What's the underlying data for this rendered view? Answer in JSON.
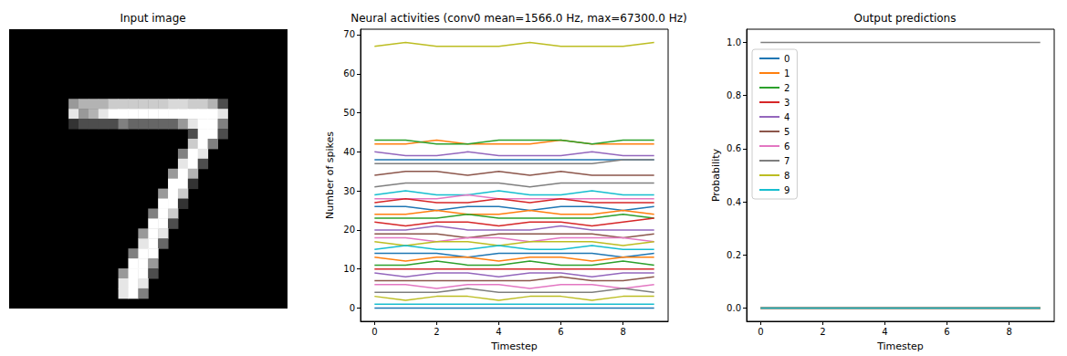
{
  "chart_data": [
    {
      "type": "heatmap",
      "title": "Input image",
      "rows": 28,
      "cols": 28,
      "color_range": [
        0,
        1
      ],
      "tick_labels": false,
      "cells": [
        [
          6,
          7,
          0.6
        ],
        [
          7,
          7,
          0.7
        ],
        [
          8,
          7,
          0.7
        ],
        [
          9,
          7,
          0.7
        ],
        [
          10,
          7,
          0.8
        ],
        [
          11,
          7,
          0.8
        ],
        [
          12,
          7,
          0.8
        ],
        [
          13,
          7,
          0.8
        ],
        [
          14,
          7,
          0.8
        ],
        [
          15,
          7,
          0.8
        ],
        [
          16,
          7,
          0.85
        ],
        [
          17,
          7,
          0.85
        ],
        [
          18,
          7,
          0.8
        ],
        [
          19,
          7,
          0.8
        ],
        [
          20,
          7,
          0.7
        ],
        [
          21,
          7,
          0.3
        ],
        [
          6,
          8,
          0.9
        ],
        [
          7,
          8,
          0.6
        ],
        [
          8,
          8,
          0.7
        ],
        [
          9,
          8,
          0.9
        ],
        [
          10,
          8,
          1
        ],
        [
          11,
          8,
          1
        ],
        [
          12,
          8,
          1
        ],
        [
          13,
          8,
          1
        ],
        [
          14,
          8,
          1
        ],
        [
          15,
          8,
          1
        ],
        [
          16,
          8,
          1
        ],
        [
          17,
          8,
          1
        ],
        [
          18,
          8,
          1
        ],
        [
          19,
          8,
          1
        ],
        [
          20,
          8,
          1
        ],
        [
          21,
          8,
          0.9
        ],
        [
          6,
          9,
          0.2
        ],
        [
          7,
          9,
          0.3
        ],
        [
          8,
          9,
          0.3
        ],
        [
          9,
          9,
          0.3
        ],
        [
          10,
          9,
          0.3
        ],
        [
          11,
          9,
          0.5
        ],
        [
          12,
          9,
          0.4
        ],
        [
          13,
          9,
          0.4
        ],
        [
          14,
          9,
          0.4
        ],
        [
          15,
          9,
          0.4
        ],
        [
          16,
          9,
          0.4
        ],
        [
          17,
          9,
          0.6
        ],
        [
          18,
          9,
          0.9
        ],
        [
          19,
          9,
          1
        ],
        [
          20,
          9,
          1
        ],
        [
          21,
          9,
          0.5
        ],
        [
          18,
          10,
          0.3
        ],
        [
          19,
          10,
          1
        ],
        [
          20,
          10,
          1
        ],
        [
          21,
          10,
          0.3
        ],
        [
          18,
          11,
          0.8
        ],
        [
          19,
          11,
          1
        ],
        [
          20,
          11,
          0.5
        ],
        [
          17,
          12,
          0.5
        ],
        [
          18,
          12,
          1
        ],
        [
          19,
          12,
          0.9
        ],
        [
          17,
          13,
          0.9
        ],
        [
          18,
          13,
          1
        ],
        [
          19,
          13,
          0.3
        ],
        [
          16,
          14,
          0.6
        ],
        [
          17,
          14,
          1
        ],
        [
          18,
          14,
          0.7
        ],
        [
          16,
          15,
          1
        ],
        [
          17,
          15,
          1
        ],
        [
          18,
          15,
          0.2
        ],
        [
          15,
          16,
          0.6
        ],
        [
          16,
          16,
          1
        ],
        [
          17,
          16,
          0.8
        ],
        [
          15,
          17,
          1
        ],
        [
          16,
          17,
          1
        ],
        [
          17,
          17,
          0.2
        ],
        [
          14,
          18,
          0.5
        ],
        [
          15,
          18,
          1
        ],
        [
          16,
          18,
          0.8
        ],
        [
          14,
          19,
          1
        ],
        [
          15,
          19,
          1
        ],
        [
          16,
          19,
          0.3
        ],
        [
          13,
          20,
          0.6
        ],
        [
          14,
          20,
          1
        ],
        [
          15,
          20,
          0.9
        ],
        [
          13,
          21,
          0.9
        ],
        [
          14,
          21,
          1
        ],
        [
          15,
          21,
          0.4
        ],
        [
          12,
          22,
          0.5
        ],
        [
          13,
          22,
          1
        ],
        [
          14,
          22,
          1
        ],
        [
          12,
          23,
          1
        ],
        [
          13,
          23,
          1
        ],
        [
          14,
          23,
          0.6
        ],
        [
          11,
          24,
          0.6
        ],
        [
          12,
          24,
          1
        ],
        [
          13,
          24,
          1
        ],
        [
          14,
          24,
          0.3
        ],
        [
          11,
          25,
          0.9
        ],
        [
          12,
          25,
          1
        ],
        [
          13,
          25,
          0.9
        ],
        [
          11,
          26,
          0.9
        ],
        [
          12,
          26,
          1
        ],
        [
          13,
          26,
          0.5
        ]
      ]
    },
    {
      "type": "line",
      "title": "Neural activities (conv0 mean=1566.0 Hz, max=67300.0 Hz)",
      "x_label": "Timestep",
      "y_label": "Number of spikes",
      "x": [
        0,
        1,
        2,
        3,
        4,
        5,
        6,
        7,
        8,
        9
      ],
      "xlim": [
        -0.45,
        9.45
      ],
      "xticks": [
        0,
        2,
        4,
        6,
        8
      ],
      "ylim": [
        -3.4,
        71.4
      ],
      "yticks": [
        0,
        10,
        20,
        30,
        40,
        50,
        60,
        70
      ],
      "grid": false,
      "series": [
        {
          "color": "#bcbd22",
          "values": [
            67,
            68,
            67,
            67,
            67,
            68,
            67,
            67,
            67,
            68
          ]
        },
        {
          "color": "#ff7f0e",
          "values": [
            42,
            42,
            43,
            42,
            42,
            42,
            43,
            42,
            42,
            42
          ]
        },
        {
          "color": "#2ca02c",
          "values": [
            43,
            43,
            42,
            42,
            43,
            43,
            43,
            42,
            43,
            43
          ]
        },
        {
          "color": "#9467bd",
          "values": [
            40,
            39,
            39,
            40,
            39,
            39,
            39,
            40,
            39,
            39
          ]
        },
        {
          "color": "#1f77b4",
          "values": [
            38,
            38,
            38,
            38,
            38,
            38,
            38,
            38,
            38,
            38
          ]
        },
        {
          "color": "#7f7f7f",
          "values": [
            37,
            37,
            37,
            37,
            37,
            37,
            37,
            37,
            38,
            38
          ]
        },
        {
          "color": "#8c564b",
          "values": [
            34,
            35,
            35,
            34,
            35,
            34,
            35,
            34,
            34,
            34
          ]
        },
        {
          "color": "#7f7f7f",
          "values": [
            31,
            32,
            32,
            32,
            32,
            31,
            32,
            32,
            32,
            32
          ]
        },
        {
          "color": "#17becf",
          "values": [
            29,
            30,
            29,
            29,
            30,
            29,
            29,
            30,
            29,
            29
          ]
        },
        {
          "color": "#e377c2",
          "values": [
            28,
            28,
            28,
            29,
            28,
            28,
            28,
            28,
            28,
            28
          ]
        },
        {
          "color": "#d62728",
          "values": [
            27,
            28,
            27,
            27,
            28,
            27,
            28,
            27,
            27,
            27
          ]
        },
        {
          "color": "#1f77b4",
          "values": [
            26,
            26,
            25,
            26,
            26,
            25,
            26,
            26,
            25,
            26
          ]
        },
        {
          "color": "#ff7f0e",
          "values": [
            24,
            24,
            25,
            24,
            24,
            25,
            24,
            24,
            25,
            24
          ]
        },
        {
          "color": "#2ca02c",
          "values": [
            23,
            23,
            23,
            24,
            23,
            23,
            23,
            23,
            24,
            23
          ]
        },
        {
          "color": "#d62728",
          "values": [
            22,
            21,
            22,
            22,
            21,
            22,
            22,
            21,
            22,
            23
          ]
        },
        {
          "color": "#9467bd",
          "values": [
            20,
            20,
            21,
            20,
            20,
            20,
            21,
            20,
            20,
            20
          ]
        },
        {
          "color": "#8c564b",
          "values": [
            19,
            19,
            19,
            18,
            19,
            19,
            19,
            19,
            18,
            19
          ]
        },
        {
          "color": "#e377c2",
          "values": [
            18,
            18,
            17,
            18,
            18,
            17,
            18,
            18,
            18,
            17
          ]
        },
        {
          "color": "#bcbd22",
          "values": [
            17,
            16,
            17,
            17,
            16,
            17,
            17,
            17,
            16,
            17
          ]
        },
        {
          "color": "#17becf",
          "values": [
            15,
            16,
            15,
            15,
            16,
            15,
            15,
            16,
            15,
            15
          ]
        },
        {
          "color": "#1f77b4",
          "values": [
            14,
            14,
            14,
            13,
            14,
            14,
            14,
            14,
            13,
            14
          ]
        },
        {
          "color": "#ff7f0e",
          "values": [
            13,
            12,
            13,
            13,
            12,
            13,
            13,
            12,
            13,
            13
          ]
        },
        {
          "color": "#2ca02c",
          "values": [
            11,
            11,
            12,
            11,
            11,
            12,
            11,
            11,
            12,
            11
          ]
        },
        {
          "color": "#d62728",
          "values": [
            10,
            10,
            10,
            10,
            10,
            10,
            10,
            10,
            10,
            10
          ]
        },
        {
          "color": "#9467bd",
          "values": [
            9,
            8,
            9,
            9,
            8,
            9,
            9,
            8,
            9,
            9
          ]
        },
        {
          "color": "#8c564b",
          "values": [
            7,
            7,
            7,
            7,
            7,
            7,
            8,
            7,
            7,
            8
          ]
        },
        {
          "color": "#e377c2",
          "values": [
            6,
            6,
            5,
            6,
            6,
            5,
            6,
            6,
            5,
            6
          ]
        },
        {
          "color": "#7f7f7f",
          "values": [
            4,
            4,
            4,
            5,
            4,
            4,
            4,
            4,
            5,
            4
          ]
        },
        {
          "color": "#bcbd22",
          "values": [
            3,
            2,
            3,
            3,
            2,
            3,
            3,
            2,
            3,
            3
          ]
        },
        {
          "color": "#17becf",
          "values": [
            1,
            1,
            1,
            1,
            1,
            1,
            1,
            1,
            1,
            1
          ]
        },
        {
          "color": "#1f77b4",
          "values": [
            0,
            0,
            0,
            0,
            0,
            0,
            0,
            0,
            0,
            0
          ]
        }
      ]
    },
    {
      "type": "line",
      "title": "Output predictions",
      "x_label": "Timestep",
      "y_label": "Probability",
      "x": [
        0,
        1,
        2,
        3,
        4,
        5,
        6,
        7,
        8,
        9
      ],
      "xlim": [
        -0.45,
        9.45
      ],
      "xticks": [
        0,
        2,
        4,
        6,
        8
      ],
      "ylim": [
        -0.05,
        1.05
      ],
      "yticks": [
        {
          "value": 0,
          "label": "0.0"
        },
        {
          "value": 0.2,
          "label": "0.2"
        },
        {
          "value": 0.4,
          "label": "0.4"
        },
        {
          "value": 0.6,
          "label": "0.6"
        },
        {
          "value": 0.8,
          "label": "0.8"
        },
        {
          "value": 1,
          "label": "1.0"
        }
      ],
      "grid": false,
      "legend": "upper left",
      "series": [
        {
          "name": "0",
          "color": "#1f77b4",
          "values": [
            0,
            0,
            0,
            0,
            0,
            0,
            0,
            0,
            0,
            0
          ]
        },
        {
          "name": "1",
          "color": "#ff7f0e",
          "values": [
            0,
            0,
            0,
            0,
            0,
            0,
            0,
            0,
            0,
            0
          ]
        },
        {
          "name": "2",
          "color": "#2ca02c",
          "values": [
            0,
            0,
            0,
            0,
            0,
            0,
            0,
            0,
            0,
            0
          ]
        },
        {
          "name": "3",
          "color": "#d62728",
          "values": [
            0,
            0,
            0,
            0,
            0,
            0,
            0,
            0,
            0,
            0
          ]
        },
        {
          "name": "4",
          "color": "#9467bd",
          "values": [
            0,
            0,
            0,
            0,
            0,
            0,
            0,
            0,
            0,
            0
          ]
        },
        {
          "name": "5",
          "color": "#8c564b",
          "values": [
            0,
            0,
            0,
            0,
            0,
            0,
            0,
            0,
            0,
            0
          ]
        },
        {
          "name": "6",
          "color": "#e377c2",
          "values": [
            0,
            0,
            0,
            0,
            0,
            0,
            0,
            0,
            0,
            0
          ]
        },
        {
          "name": "7",
          "color": "#7f7f7f",
          "values": [
            1,
            1,
            1,
            1,
            1,
            1,
            1,
            1,
            1,
            1
          ]
        },
        {
          "name": "8",
          "color": "#bcbd22",
          "values": [
            0,
            0,
            0,
            0,
            0,
            0,
            0,
            0,
            0,
            0
          ]
        },
        {
          "name": "9",
          "color": "#17becf",
          "values": [
            0,
            0,
            0,
            0,
            0,
            0,
            0,
            0,
            0,
            0
          ]
        }
      ]
    }
  ]
}
